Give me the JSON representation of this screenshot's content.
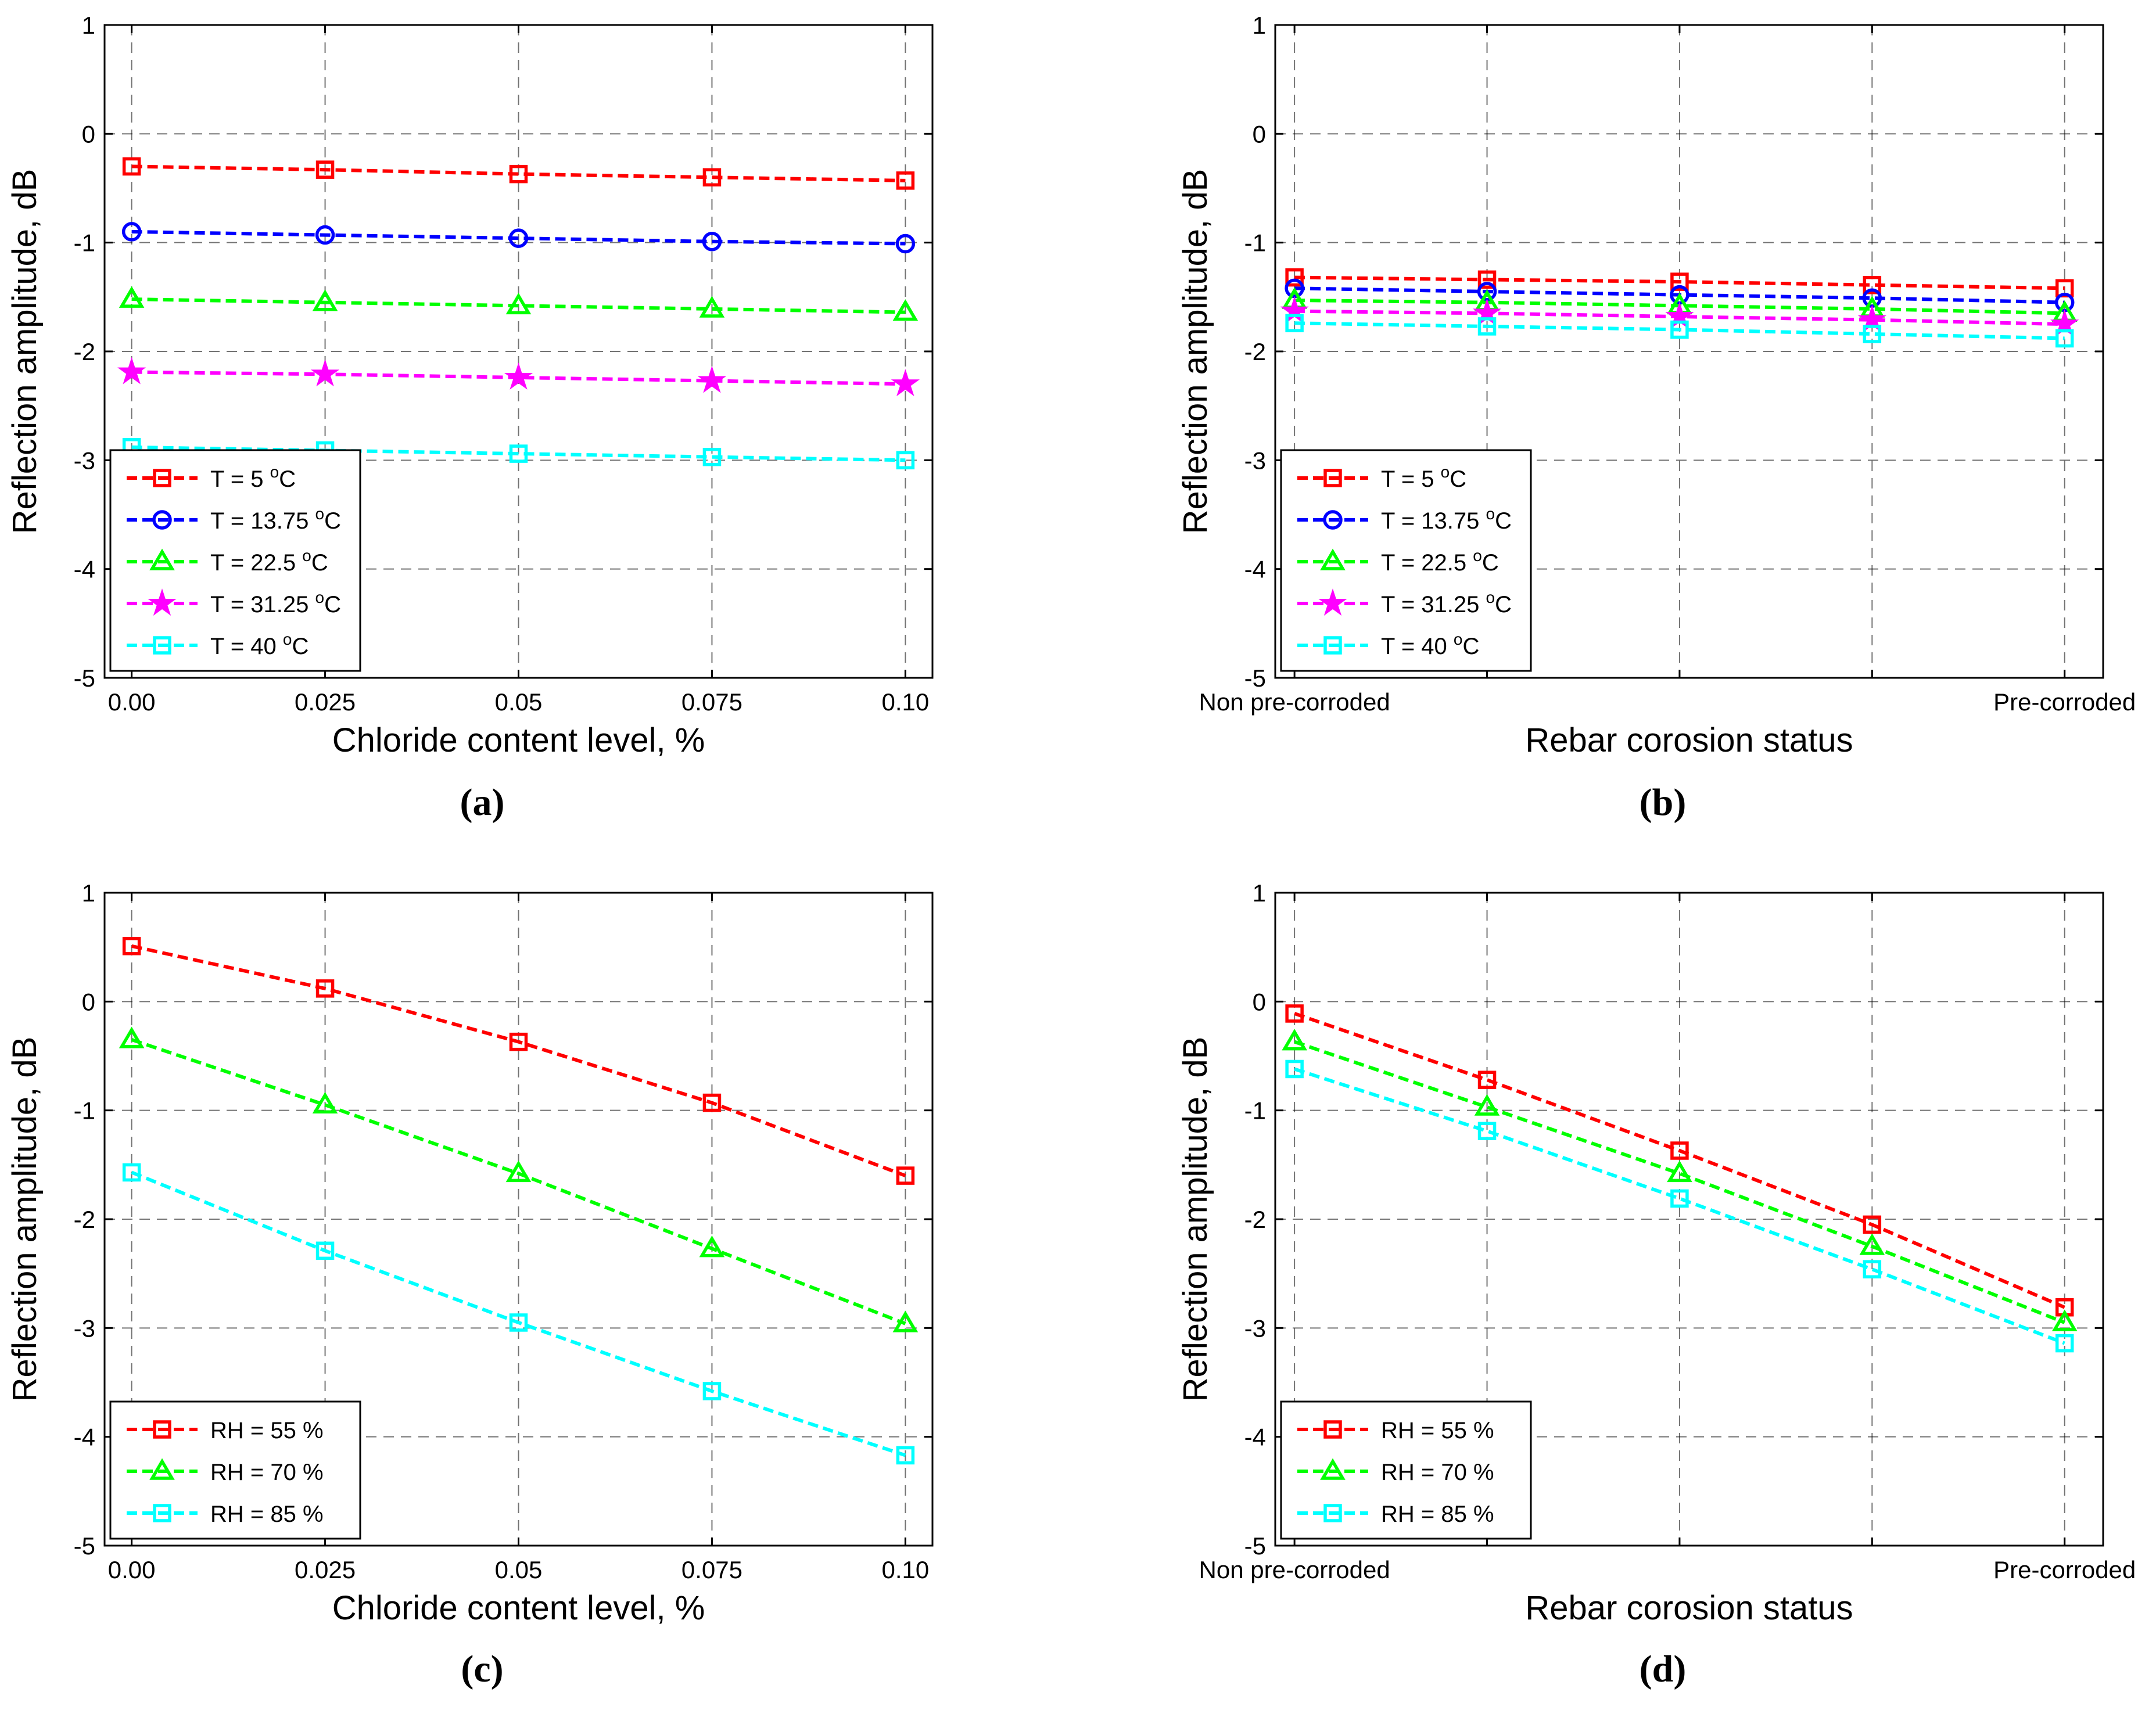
{
  "colors": {
    "red": "#ff0000",
    "blue": "#0000ff",
    "green": "#00ff00",
    "magenta": "#ff00ff",
    "cyan": "#00ffff",
    "grid": "#000000",
    "axis": "#000000"
  },
  "chart_data": [
    {
      "panel_caption": "(a)",
      "type": "line",
      "title": "",
      "xlabel": "Chloride content level, %",
      "ylabel": "Reflection amplitude, dB",
      "x": [
        0,
        0.025,
        0.05,
        0.075,
        0.1
      ],
      "x_tick_labels": [
        "0.00",
        "0.025",
        "0.05",
        "0.075",
        "0.10"
      ],
      "xlim": [
        -0.0035,
        0.1035
      ],
      "ylim": [
        -5,
        1
      ],
      "y_ticks": [
        "-5",
        "-4",
        "-3",
        "-2",
        "-1",
        "0",
        "1"
      ],
      "grid": true,
      "legend_position": "lower-left",
      "series": [
        {
          "name": "T = 5 °C",
          "legend": {
            "base": "T = 5 ",
            "sup": "o",
            "unit": "C"
          },
          "color": "#ff0000",
          "marker": "square",
          "values": [
            -0.3,
            -0.33,
            -0.37,
            -0.4,
            -0.43
          ]
        },
        {
          "name": "T = 13.75 °C",
          "legend": {
            "base": "T = 13.75 ",
            "sup": "o",
            "unit": "C"
          },
          "color": "#0000ff",
          "marker": "circle",
          "values": [
            -0.9,
            -0.93,
            -0.96,
            -0.99,
            -1.01
          ]
        },
        {
          "name": "T = 22.5 °C",
          "legend": {
            "base": "T = 22.5 ",
            "sup": "o",
            "unit": "C"
          },
          "color": "#00ff00",
          "marker": "triangle",
          "values": [
            -1.52,
            -1.55,
            -1.58,
            -1.61,
            -1.64
          ]
        },
        {
          "name": "T = 31.25 °C",
          "legend": {
            "base": "T = 31.25 ",
            "sup": "o",
            "unit": "C"
          },
          "color": "#ff00ff",
          "marker": "star",
          "values": [
            -2.19,
            -2.21,
            -2.24,
            -2.27,
            -2.3
          ]
        },
        {
          "name": "T = 40 °C",
          "legend": {
            "base": "T = 40 ",
            "sup": "o",
            "unit": "C"
          },
          "color": "#00ffff",
          "marker": "square",
          "values": [
            -2.88,
            -2.91,
            -2.94,
            -2.97,
            -3.0
          ]
        }
      ]
    },
    {
      "panel_caption": "(b)",
      "type": "line",
      "title": "",
      "xlabel": "Rebar corosion status",
      "ylabel": "Reflection amplitude, dB",
      "x": [
        0,
        1,
        2,
        3,
        4
      ],
      "x_tick_labels": [
        "Non pre-corroded",
        "",
        "",
        "",
        "Pre-corroded"
      ],
      "xlim": [
        -0.1,
        4.2
      ],
      "ylim": [
        -5,
        1
      ],
      "y_ticks": [
        "-5",
        "-4",
        "-3",
        "-2",
        "-1",
        "0",
        "1"
      ],
      "grid": true,
      "legend_position": "lower-left",
      "series": [
        {
          "name": "T = 5 °C",
          "legend": {
            "base": "T = 5 ",
            "sup": "o",
            "unit": "C"
          },
          "color": "#ff0000",
          "marker": "square",
          "values": [
            -1.32,
            -1.34,
            -1.36,
            -1.39,
            -1.42
          ]
        },
        {
          "name": "T = 13.75 °C",
          "legend": {
            "base": "T = 13.75 ",
            "sup": "o",
            "unit": "C"
          },
          "color": "#0000ff",
          "marker": "circle",
          "values": [
            -1.42,
            -1.45,
            -1.48,
            -1.51,
            -1.55
          ]
        },
        {
          "name": "T = 22.5 °C",
          "legend": {
            "base": "T = 22.5 ",
            "sup": "o",
            "unit": "C"
          },
          "color": "#00ff00",
          "marker": "triangle",
          "values": [
            -1.53,
            -1.55,
            -1.58,
            -1.61,
            -1.65
          ]
        },
        {
          "name": "T = 31.25 °C",
          "legend": {
            "base": "T = 31.25 ",
            "sup": "o",
            "unit": "C"
          },
          "color": "#ff00ff",
          "marker": "star",
          "values": [
            -1.63,
            -1.65,
            -1.68,
            -1.71,
            -1.75
          ]
        },
        {
          "name": "T = 40 °C",
          "legend": {
            "base": "T = 40 ",
            "sup": "o",
            "unit": "C"
          },
          "color": "#00ffff",
          "marker": "square",
          "values": [
            -1.74,
            -1.77,
            -1.8,
            -1.84,
            -1.88
          ]
        }
      ]
    },
    {
      "panel_caption": "(c)",
      "type": "line",
      "title": "",
      "xlabel": "Chloride content level, %",
      "ylabel": "Reflection amplitude, dB",
      "x": [
        0,
        0.025,
        0.05,
        0.075,
        0.1
      ],
      "x_tick_labels": [
        "0.00",
        "0.025",
        "0.05",
        "0.075",
        "0.10"
      ],
      "xlim": [
        -0.0035,
        0.1035
      ],
      "ylim": [
        -5,
        1
      ],
      "y_ticks": [
        "-5",
        "-4",
        "-3",
        "-2",
        "-1",
        "0",
        "1"
      ],
      "grid": true,
      "legend_position": "lower-left",
      "series": [
        {
          "name": "RH = 55 %",
          "legend": {
            "base": "RH = 55 %",
            "sup": "",
            "unit": ""
          },
          "color": "#ff0000",
          "marker": "square",
          "values": [
            0.51,
            0.12,
            -0.37,
            -0.93,
            -1.6
          ]
        },
        {
          "name": "RH = 70 %",
          "legend": {
            "base": "RH = 70 %",
            "sup": "",
            "unit": ""
          },
          "color": "#00ff00",
          "marker": "triangle",
          "values": [
            -0.35,
            -0.95,
            -1.58,
            -2.27,
            -2.96
          ]
        },
        {
          "name": "RH = 85 %",
          "legend": {
            "base": "RH = 85 %",
            "sup": "",
            "unit": ""
          },
          "color": "#00ffff",
          "marker": "square",
          "values": [
            -1.57,
            -2.29,
            -2.95,
            -3.58,
            -4.17
          ]
        }
      ]
    },
    {
      "panel_caption": "(d)",
      "type": "line",
      "title": "",
      "xlabel": "Rebar corosion status",
      "ylabel": "Reflection amplitude, dB",
      "x": [
        0,
        1,
        2,
        3,
        4
      ],
      "x_tick_labels": [
        "Non pre-corroded",
        "",
        "",
        "",
        "Pre-corroded"
      ],
      "xlim": [
        -0.1,
        4.2
      ],
      "ylim": [
        -5,
        1
      ],
      "y_ticks": [
        "-5",
        "-4",
        "-3",
        "-2",
        "-1",
        "0",
        "1"
      ],
      "grid": true,
      "legend_position": "lower-left",
      "series": [
        {
          "name": "RH = 55 %",
          "legend": {
            "base": "RH = 55 %",
            "sup": "",
            "unit": ""
          },
          "color": "#ff0000",
          "marker": "square",
          "values": [
            -0.11,
            -0.72,
            -1.37,
            -2.05,
            -2.81
          ]
        },
        {
          "name": "RH = 70 %",
          "legend": {
            "base": "RH = 70 %",
            "sup": "",
            "unit": ""
          },
          "color": "#00ff00",
          "marker": "triangle",
          "values": [
            -0.37,
            -0.97,
            -1.58,
            -2.25,
            -2.95
          ]
        },
        {
          "name": "RH = 85 %",
          "legend": {
            "base": "RH = 85 %",
            "sup": "",
            "unit": ""
          },
          "color": "#00ffff",
          "marker": "square",
          "values": [
            -0.62,
            -1.19,
            -1.81,
            -2.46,
            -3.14
          ]
        }
      ]
    }
  ]
}
